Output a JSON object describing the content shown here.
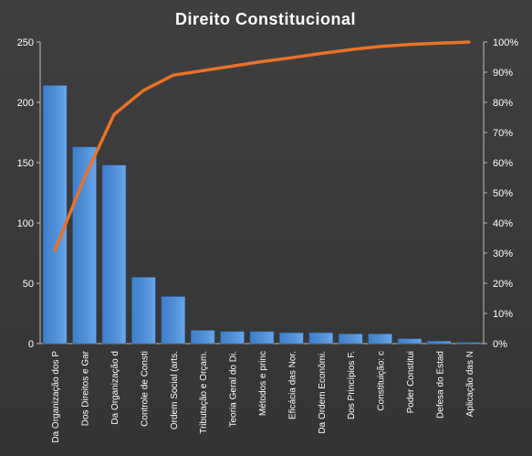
{
  "chart_data": {
    "type": "bar",
    "title": "Direito  Constitucional",
    "categories": [
      "Da Organização dos P",
      "Dos Direitos e Gar",
      "Da Organização d",
      "Controle de Consti",
      "Ordem Social (arts.",
      "Tributação e Orçam.",
      "Teoria Geral do Di.",
      "Métodos e princ",
      "Eficácia das Nor.",
      "Da Ordem Econômi.",
      "Dos Princípios F.",
      "Constituição: c",
      "Poder Constitui",
      "Defesa do Estad",
      "Aplicação das N"
    ],
    "series": [
      {
        "type": "bar",
        "values": [
          214,
          163,
          148,
          55,
          39,
          11,
          10,
          10,
          9,
          9,
          8,
          8,
          4,
          2,
          1
        ],
        "color": "#4f8fd6"
      },
      {
        "type": "line",
        "axis": "right",
        "values": [
          0.31,
          0.55,
          0.76,
          0.84,
          0.89,
          0.905,
          0.92,
          0.935,
          0.948,
          0.962,
          0.975,
          0.985,
          0.992,
          0.996,
          1.0
        ],
        "color": "#e8722a"
      }
    ],
    "y_left": {
      "min": 0,
      "max": 250,
      "ticks": [
        "0",
        "50",
        "100",
        "150",
        "200",
        "250"
      ]
    },
    "y_right": {
      "min": 0,
      "max": 1,
      "ticks": [
        "0%",
        "10%",
        "20%",
        "30%",
        "40%",
        "50%",
        "60%",
        "70%",
        "80%",
        "90%",
        "100%"
      ]
    },
    "grid": false,
    "legend": "none",
    "background": "#3a3a3a",
    "text_color": "#ffffff"
  }
}
